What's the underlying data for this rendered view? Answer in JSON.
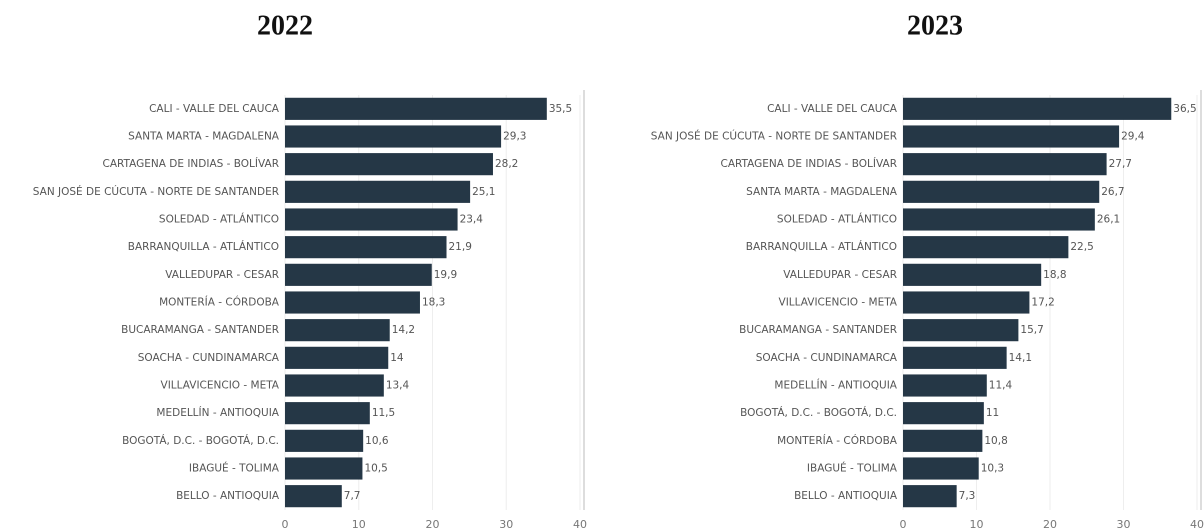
{
  "chart_data": [
    {
      "type": "bar",
      "orientation": "horizontal",
      "title": "2022",
      "color": "#253746",
      "categories": [
        "CALI - VALLE DEL CAUCA",
        "SANTA MARTA - MAGDALENA",
        "CARTAGENA DE INDIAS - BOLÍVAR",
        "SAN JOSÉ DE CÚCUTA - NORTE DE SANTANDER",
        "SOLEDAD - ATLÁNTICO",
        "BARRANQUILLA - ATLÁNTICO",
        "VALLEDUPAR - CESAR",
        "MONTERÍA - CÓRDOBA",
        "BUCARAMANGA - SANTANDER",
        "SOACHA - CUNDINAMARCA",
        "VILLAVICENCIO - META",
        "MEDELLÍN - ANTIOQUIA",
        "BOGOTÁ, D.C. - BOGOTÁ, D.C.",
        "IBAGUÉ - TOLIMA",
        "BELLO - ANTIOQUIA"
      ],
      "values": [
        35.5,
        29.3,
        28.2,
        25.1,
        23.4,
        21.9,
        19.9,
        18.3,
        14.2,
        14,
        13.4,
        11.5,
        10.6,
        10.5,
        7.7
      ],
      "value_labels": [
        "35,5",
        "29,3",
        "28,2",
        "25,1",
        "23,4",
        "21,9",
        "19,9",
        "18,3",
        "14,2",
        "14",
        "13,4",
        "11,5",
        "10,6",
        "10,5",
        "7,7"
      ],
      "xlim": [
        0,
        40
      ],
      "xticks": [
        0,
        10,
        20,
        30,
        40
      ]
    },
    {
      "type": "bar",
      "orientation": "horizontal",
      "title": "2023",
      "color": "#253746",
      "categories": [
        "CALI - VALLE DEL CAUCA",
        "SAN JOSÉ DE CÚCUTA - NORTE DE SANTANDER",
        "CARTAGENA DE INDIAS - BOLÍVAR",
        "SANTA MARTA - MAGDALENA",
        "SOLEDAD - ATLÁNTICO",
        "BARRANQUILLA - ATLÁNTICO",
        "VALLEDUPAR - CESAR",
        "VILLAVICENCIO - META",
        "BUCARAMANGA - SANTANDER",
        "SOACHA - CUNDINAMARCA",
        "MEDELLÍN - ANTIOQUIA",
        "BOGOTÁ, D.C. - BOGOTÁ, D.C.",
        "MONTERÍA - CÓRDOBA",
        "IBAGUÉ - TOLIMA",
        "BELLO - ANTIOQUIA"
      ],
      "values": [
        36.5,
        29.4,
        27.7,
        26.7,
        26.1,
        22.5,
        18.8,
        17.2,
        15.7,
        14.1,
        11.4,
        11,
        10.8,
        10.3,
        7.3
      ],
      "value_labels": [
        "36,5",
        "29,4",
        "27,7",
        "26,7",
        "26,1",
        "22,5",
        "18,8",
        "17,2",
        "15,7",
        "14,1",
        "11,4",
        "11",
        "10,8",
        "10,3",
        "7,3"
      ],
      "xlim": [
        0,
        40
      ],
      "xticks": [
        0,
        10,
        20,
        30,
        40
      ]
    }
  ]
}
